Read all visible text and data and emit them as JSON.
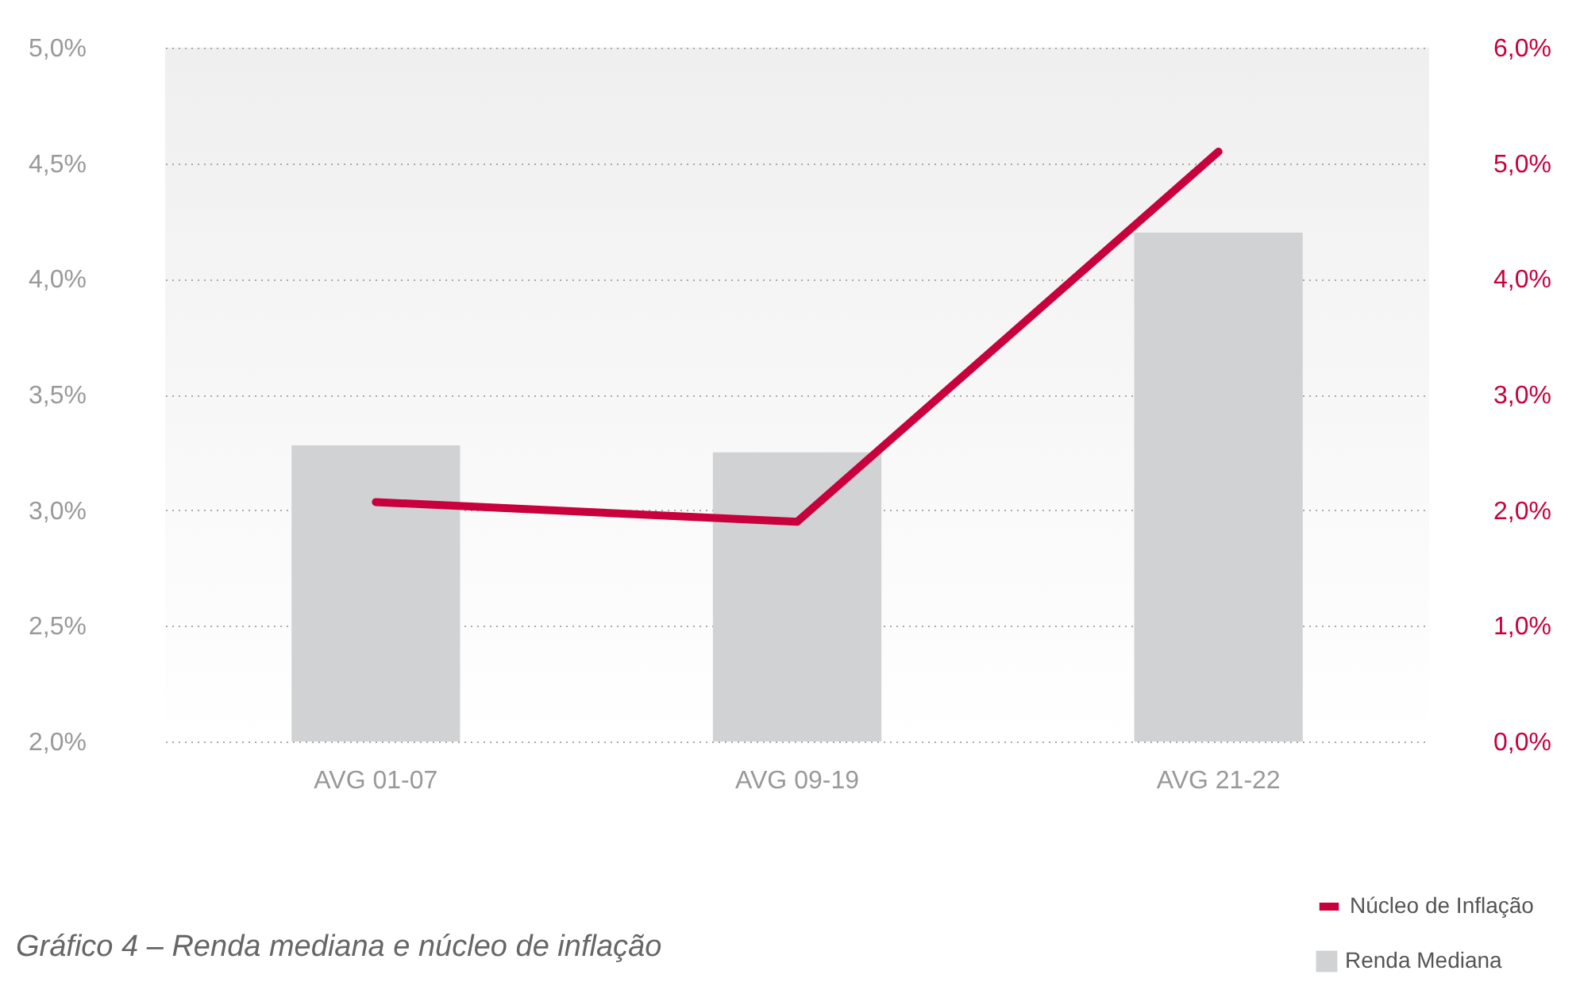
{
  "chart_data": {
    "type": "bar",
    "categories": [
      "AVG 01-07",
      "AVG 09-19",
      "AVG 21-22"
    ],
    "series": [
      {
        "name": "Renda Mediana",
        "color": "#d1d2d4",
        "values": [
          3.28,
          3.25,
          4.2
        ]
      },
      {
        "name": "Núcleo de Inflação",
        "type": "line",
        "axis": "y2",
        "color": "#c8003c",
        "values": [
          2.07,
          1.9,
          5.1
        ]
      }
    ],
    "ylim": [
      2,
      5
    ],
    "yticks": [
      {
        "value": 2,
        "label": "2,0%"
      },
      {
        "value": 2.5,
        "label": "2,5%"
      },
      {
        "value": 3,
        "label": "3,0%"
      },
      {
        "value": 3.5,
        "label": "3,5%"
      },
      {
        "value": 4,
        "label": "4,0%"
      },
      {
        "value": 4.5,
        "label": "4,5%"
      },
      {
        "value": 5,
        "label": "5,0%"
      }
    ],
    "y2lim": [
      0,
      6
    ],
    "y2ticks": [
      {
        "value": 0,
        "label": "0,0%"
      },
      {
        "value": 1,
        "label": "1,0%"
      },
      {
        "value": 2,
        "label": "2,0%"
      },
      {
        "value": 3,
        "label": "3,0%"
      },
      {
        "value": 4,
        "label": "4,0%"
      },
      {
        "value": 5,
        "label": "5,0%"
      },
      {
        "value": 6,
        "label": "6,0%"
      }
    ],
    "grid": "y",
    "legend": "bottom right",
    "annotations": [
      "Gráfico 4 – Renda mediana e núcleo de inflação"
    ]
  }
}
